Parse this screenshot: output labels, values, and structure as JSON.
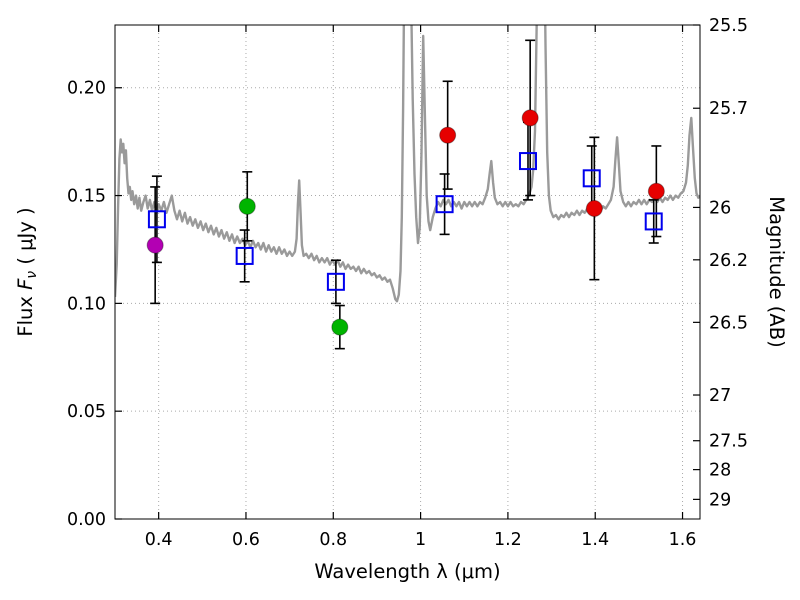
{
  "chart_data": {
    "type": "line+scatter",
    "title": "",
    "xlabel": "Wavelength  λ (μm)",
    "ylabel": "Flux  Fν  ( μJy )",
    "ylabel_right": "Magnitude (AB)",
    "xlim": [
      0.3,
      1.64
    ],
    "ylim": [
      0.0,
      0.2291
    ],
    "grid": true,
    "grid_style": "dotted",
    "grid_color": "#aaaaaa",
    "x_ticks": [
      0.4,
      0.6,
      0.8,
      1.0,
      1.2,
      1.4,
      1.6
    ],
    "x_tick_labels": [
      "0.4",
      "0.6",
      "0.8",
      "1",
      "1.2",
      "1.4",
      "1.6"
    ],
    "y_ticks": [
      0.0,
      0.05,
      0.1,
      0.15,
      0.2
    ],
    "y_tick_labels": [
      "0.00",
      "0.05",
      "0.10",
      "0.15",
      "0.20"
    ],
    "right_ticks": [
      {
        "label": "25.5",
        "flux": 0.2291
      },
      {
        "label": "25.7",
        "flux": 0.1905
      },
      {
        "label": "26",
        "flux": 0.1445
      },
      {
        "label": "26.2",
        "flux": 0.1202
      },
      {
        "label": "26.5",
        "flux": 0.0912
      },
      {
        "label": "27",
        "flux": 0.0575
      },
      {
        "label": "27.5",
        "flux": 0.0363
      },
      {
        "label": "28",
        "flux": 0.0229
      },
      {
        "label": "29",
        "flux": 0.0091
      }
    ],
    "series": [
      {
        "name": "gray-spectrum",
        "type": "line",
        "color": "#9a9a9a",
        "width": 2.4,
        "points": [
          [
            0.3,
            0.103
          ],
          [
            0.304,
            0.118
          ],
          [
            0.307,
            0.145
          ],
          [
            0.31,
            0.167
          ],
          [
            0.313,
            0.176
          ],
          [
            0.316,
            0.17
          ],
          [
            0.319,
            0.174
          ],
          [
            0.322,
            0.165
          ],
          [
            0.325,
            0.171
          ],
          [
            0.328,
            0.158
          ],
          [
            0.331,
            0.151
          ],
          [
            0.334,
            0.154
          ],
          [
            0.337,
            0.148
          ],
          [
            0.34,
            0.152
          ],
          [
            0.344,
            0.146
          ],
          [
            0.348,
            0.15
          ],
          [
            0.352,
            0.144
          ],
          [
            0.356,
            0.149
          ],
          [
            0.36,
            0.143
          ],
          [
            0.365,
            0.147
          ],
          [
            0.37,
            0.15
          ],
          [
            0.375,
            0.144
          ],
          [
            0.38,
            0.148
          ],
          [
            0.385,
            0.143
          ],
          [
            0.39,
            0.147
          ],
          [
            0.395,
            0.142
          ],
          [
            0.4,
            0.146
          ],
          [
            0.406,
            0.143
          ],
          [
            0.412,
            0.147
          ],
          [
            0.418,
            0.142
          ],
          [
            0.424,
            0.146
          ],
          [
            0.43,
            0.15
          ],
          [
            0.436,
            0.143
          ],
          [
            0.442,
            0.139
          ],
          [
            0.448,
            0.143
          ],
          [
            0.454,
            0.138
          ],
          [
            0.46,
            0.142
          ],
          [
            0.466,
            0.137
          ],
          [
            0.472,
            0.14
          ],
          [
            0.478,
            0.136
          ],
          [
            0.484,
            0.139
          ],
          [
            0.49,
            0.135
          ],
          [
            0.496,
            0.138
          ],
          [
            0.502,
            0.134
          ],
          [
            0.508,
            0.137
          ],
          [
            0.514,
            0.133
          ],
          [
            0.52,
            0.136
          ],
          [
            0.526,
            0.132
          ],
          [
            0.532,
            0.135
          ],
          [
            0.538,
            0.131
          ],
          [
            0.544,
            0.134
          ],
          [
            0.55,
            0.13
          ],
          [
            0.556,
            0.133
          ],
          [
            0.562,
            0.129
          ],
          [
            0.568,
            0.132
          ],
          [
            0.574,
            0.128
          ],
          [
            0.58,
            0.131
          ],
          [
            0.586,
            0.128
          ],
          [
            0.592,
            0.13
          ],
          [
            0.598,
            0.127
          ],
          [
            0.604,
            0.129
          ],
          [
            0.61,
            0.126
          ],
          [
            0.616,
            0.129
          ],
          [
            0.622,
            0.126
          ],
          [
            0.628,
            0.128
          ],
          [
            0.634,
            0.125
          ],
          [
            0.64,
            0.128
          ],
          [
            0.646,
            0.124
          ],
          [
            0.652,
            0.127
          ],
          [
            0.658,
            0.124
          ],
          [
            0.664,
            0.126
          ],
          [
            0.67,
            0.123
          ],
          [
            0.676,
            0.126
          ],
          [
            0.682,
            0.123
          ],
          [
            0.688,
            0.125
          ],
          [
            0.694,
            0.122
          ],
          [
            0.7,
            0.124
          ],
          [
            0.706,
            0.122
          ],
          [
            0.712,
            0.124
          ],
          [
            0.716,
            0.13
          ],
          [
            0.719,
            0.146
          ],
          [
            0.722,
            0.157
          ],
          [
            0.725,
            0.143
          ],
          [
            0.728,
            0.127
          ],
          [
            0.732,
            0.122
          ],
          [
            0.738,
            0.123
          ],
          [
            0.744,
            0.121
          ],
          [
            0.75,
            0.123
          ],
          [
            0.756,
            0.12
          ],
          [
            0.762,
            0.122
          ],
          [
            0.768,
            0.119
          ],
          [
            0.774,
            0.121
          ],
          [
            0.78,
            0.119
          ],
          [
            0.786,
            0.121
          ],
          [
            0.792,
            0.118
          ],
          [
            0.798,
            0.12
          ],
          [
            0.804,
            0.118
          ],
          [
            0.81,
            0.12
          ],
          [
            0.816,
            0.117
          ],
          [
            0.822,
            0.119
          ],
          [
            0.828,
            0.116
          ],
          [
            0.834,
            0.118
          ],
          [
            0.84,
            0.116
          ],
          [
            0.846,
            0.117
          ],
          [
            0.852,
            0.115
          ],
          [
            0.858,
            0.117
          ],
          [
            0.864,
            0.114
          ],
          [
            0.87,
            0.116
          ],
          [
            0.876,
            0.114
          ],
          [
            0.882,
            0.115
          ],
          [
            0.888,
            0.113
          ],
          [
            0.894,
            0.114
          ],
          [
            0.9,
            0.112
          ],
          [
            0.906,
            0.113
          ],
          [
            0.912,
            0.111
          ],
          [
            0.918,
            0.112
          ],
          [
            0.924,
            0.11
          ],
          [
            0.93,
            0.111
          ],
          [
            0.936,
            0.107
          ],
          [
            0.942,
            0.102
          ],
          [
            0.946,
            0.101
          ],
          [
            0.95,
            0.104
          ],
          [
            0.954,
            0.115
          ],
          [
            0.957,
            0.14
          ],
          [
            0.96,
            0.19
          ],
          [
            0.963,
            0.26
          ],
          [
            0.966,
            0.32
          ],
          [
            0.97,
            0.33
          ],
          [
            0.974,
            0.3
          ],
          [
            0.978,
            0.245
          ],
          [
            0.982,
            0.195
          ],
          [
            0.986,
            0.16
          ],
          [
            0.99,
            0.14
          ],
          [
            0.994,
            0.128
          ],
          [
            0.998,
            0.135
          ],
          [
            1.002,
            0.17
          ],
          [
            1.006,
            0.224
          ],
          [
            1.01,
            0.185
          ],
          [
            1.014,
            0.15
          ],
          [
            1.018,
            0.138
          ],
          [
            1.022,
            0.134
          ],
          [
            1.028,
            0.14
          ],
          [
            1.034,
            0.144
          ],
          [
            1.04,
            0.147
          ],
          [
            1.046,
            0.145
          ],
          [
            1.052,
            0.148
          ],
          [
            1.058,
            0.146
          ],
          [
            1.064,
            0.148
          ],
          [
            1.07,
            0.145
          ],
          [
            1.076,
            0.147
          ],
          [
            1.082,
            0.145
          ],
          [
            1.088,
            0.147
          ],
          [
            1.094,
            0.144
          ],
          [
            1.1,
            0.147
          ],
          [
            1.106,
            0.145
          ],
          [
            1.112,
            0.147
          ],
          [
            1.118,
            0.145
          ],
          [
            1.124,
            0.147
          ],
          [
            1.13,
            0.145
          ],
          [
            1.136,
            0.147
          ],
          [
            1.142,
            0.146
          ],
          [
            1.148,
            0.149
          ],
          [
            1.154,
            0.153
          ],
          [
            1.158,
            0.16
          ],
          [
            1.162,
            0.166
          ],
          [
            1.166,
            0.156
          ],
          [
            1.17,
            0.149
          ],
          [
            1.176,
            0.146
          ],
          [
            1.182,
            0.147
          ],
          [
            1.188,
            0.145
          ],
          [
            1.194,
            0.147
          ],
          [
            1.2,
            0.145
          ],
          [
            1.206,
            0.147
          ],
          [
            1.212,
            0.145
          ],
          [
            1.218,
            0.146
          ],
          [
            1.224,
            0.145
          ],
          [
            1.23,
            0.147
          ],
          [
            1.236,
            0.146
          ],
          [
            1.242,
            0.148
          ],
          [
            1.248,
            0.15
          ],
          [
            1.254,
            0.154
          ],
          [
            1.258,
            0.162
          ],
          [
            1.262,
            0.18
          ],
          [
            1.266,
            0.23
          ],
          [
            1.27,
            0.3
          ],
          [
            1.274,
            0.33
          ],
          [
            1.278,
            0.33
          ],
          [
            1.282,
            0.29
          ],
          [
            1.286,
            0.22
          ],
          [
            1.29,
            0.17
          ],
          [
            1.294,
            0.15
          ],
          [
            1.298,
            0.143
          ],
          [
            1.304,
            0.14
          ],
          [
            1.31,
            0.141
          ],
          [
            1.316,
            0.139
          ],
          [
            1.322,
            0.141
          ],
          [
            1.328,
            0.14
          ],
          [
            1.334,
            0.142
          ],
          [
            1.34,
            0.14
          ],
          [
            1.346,
            0.142
          ],
          [
            1.352,
            0.141
          ],
          [
            1.358,
            0.143
          ],
          [
            1.364,
            0.141
          ],
          [
            1.37,
            0.143
          ],
          [
            1.376,
            0.142
          ],
          [
            1.382,
            0.144
          ],
          [
            1.388,
            0.142
          ],
          [
            1.394,
            0.144
          ],
          [
            1.4,
            0.143
          ],
          [
            1.406,
            0.145
          ],
          [
            1.412,
            0.143
          ],
          [
            1.418,
            0.145
          ],
          [
            1.424,
            0.144
          ],
          [
            1.43,
            0.146
          ],
          [
            1.436,
            0.148
          ],
          [
            1.442,
            0.154
          ],
          [
            1.446,
            0.166
          ],
          [
            1.45,
            0.177
          ],
          [
            1.454,
            0.165
          ],
          [
            1.458,
            0.152
          ],
          [
            1.464,
            0.147
          ],
          [
            1.47,
            0.145
          ],
          [
            1.476,
            0.147
          ],
          [
            1.482,
            0.145
          ],
          [
            1.488,
            0.147
          ],
          [
            1.494,
            0.146
          ],
          [
            1.5,
            0.148
          ],
          [
            1.506,
            0.146
          ],
          [
            1.512,
            0.148
          ],
          [
            1.518,
            0.146
          ],
          [
            1.524,
            0.148
          ],
          [
            1.53,
            0.147
          ],
          [
            1.536,
            0.149
          ],
          [
            1.542,
            0.147
          ],
          [
            1.548,
            0.149
          ],
          [
            1.554,
            0.147
          ],
          [
            1.56,
            0.149
          ],
          [
            1.566,
            0.148
          ],
          [
            1.572,
            0.15
          ],
          [
            1.578,
            0.148
          ],
          [
            1.584,
            0.15
          ],
          [
            1.59,
            0.149
          ],
          [
            1.596,
            0.151
          ],
          [
            1.602,
            0.152
          ],
          [
            1.608,
            0.156
          ],
          [
            1.612,
            0.164
          ],
          [
            1.616,
            0.178
          ],
          [
            1.62,
            0.186
          ],
          [
            1.624,
            0.172
          ],
          [
            1.628,
            0.158
          ],
          [
            1.632,
            0.151
          ],
          [
            1.636,
            0.149
          ],
          [
            1.64,
            0.15
          ]
        ]
      },
      {
        "name": "filled-circle-points",
        "type": "scatter",
        "marker": "circle",
        "errorbar_color": "#000000",
        "points": [
          {
            "x": 0.392,
            "y": 0.127,
            "err": 0.027,
            "color": "#b300b3"
          },
          {
            "x": 0.603,
            "y": 0.145,
            "err": 0.016,
            "color": "#00b400"
          },
          {
            "x": 0.815,
            "y": 0.089,
            "err": 0.01,
            "color": "#00b400"
          },
          {
            "x": 1.062,
            "y": 0.178,
            "err": 0.025,
            "color": "#e60000"
          },
          {
            "x": 1.251,
            "y": 0.186,
            "err": 0.036,
            "color": "#e60000"
          },
          {
            "x": 1.398,
            "y": 0.144,
            "err": 0.033,
            "color": "#e60000"
          },
          {
            "x": 1.54,
            "y": 0.152,
            "err": 0.021,
            "color": "#e60000"
          }
        ]
      },
      {
        "name": "open-square-points",
        "type": "scatter",
        "marker": "square",
        "color": "#0000ee",
        "errorbar_color": "#000000",
        "points": [
          {
            "x": 0.396,
            "y": 0.139,
            "err": 0.02
          },
          {
            "x": 0.597,
            "y": 0.122,
            "err": 0.012
          },
          {
            "x": 0.806,
            "y": 0.11,
            "err": 0.01
          },
          {
            "x": 1.055,
            "y": 0.146,
            "err": 0.014
          },
          {
            "x": 1.246,
            "y": 0.166,
            "err": 0.018
          },
          {
            "x": 1.392,
            "y": 0.158,
            "err": 0.015
          },
          {
            "x": 1.534,
            "y": 0.138,
            "err": 0.01
          }
        ]
      }
    ]
  }
}
